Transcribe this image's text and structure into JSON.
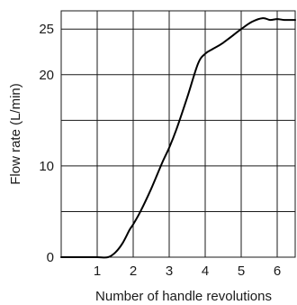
{
  "chart_data": {
    "type": "line",
    "title": "",
    "xlabel": "Number of handle revolutions",
    "ylabel": "Flow rate (L/min)",
    "xlim": [
      0,
      6.5
    ],
    "ylim": [
      0,
      27
    ],
    "x_ticks": [
      1,
      2,
      3,
      4,
      5,
      6
    ],
    "y_ticks": [
      0,
      10,
      20,
      25
    ],
    "y_gridlines": [
      0,
      5,
      10,
      15,
      20,
      25
    ],
    "grid": true,
    "series": [
      {
        "x": [
          0,
          0.5,
          1.0,
          1.3,
          1.5,
          1.7,
          1.9,
          2.0,
          2.2,
          2.5,
          2.8,
          3.0,
          3.2,
          3.5,
          3.8,
          4.0,
          4.2,
          4.5,
          5.0,
          5.3,
          5.6,
          5.8,
          6.0,
          6.2,
          6.5
        ],
        "y": [
          0,
          0,
          0,
          0,
          0.5,
          1.5,
          3.0,
          3.6,
          5.0,
          7.5,
          10.3,
          12.0,
          14.0,
          17.5,
          21.2,
          22.3,
          22.8,
          23.5,
          25.0,
          25.8,
          26.2,
          26.0,
          26.1,
          26.0,
          26.0
        ],
        "color": "#000000"
      }
    ]
  }
}
